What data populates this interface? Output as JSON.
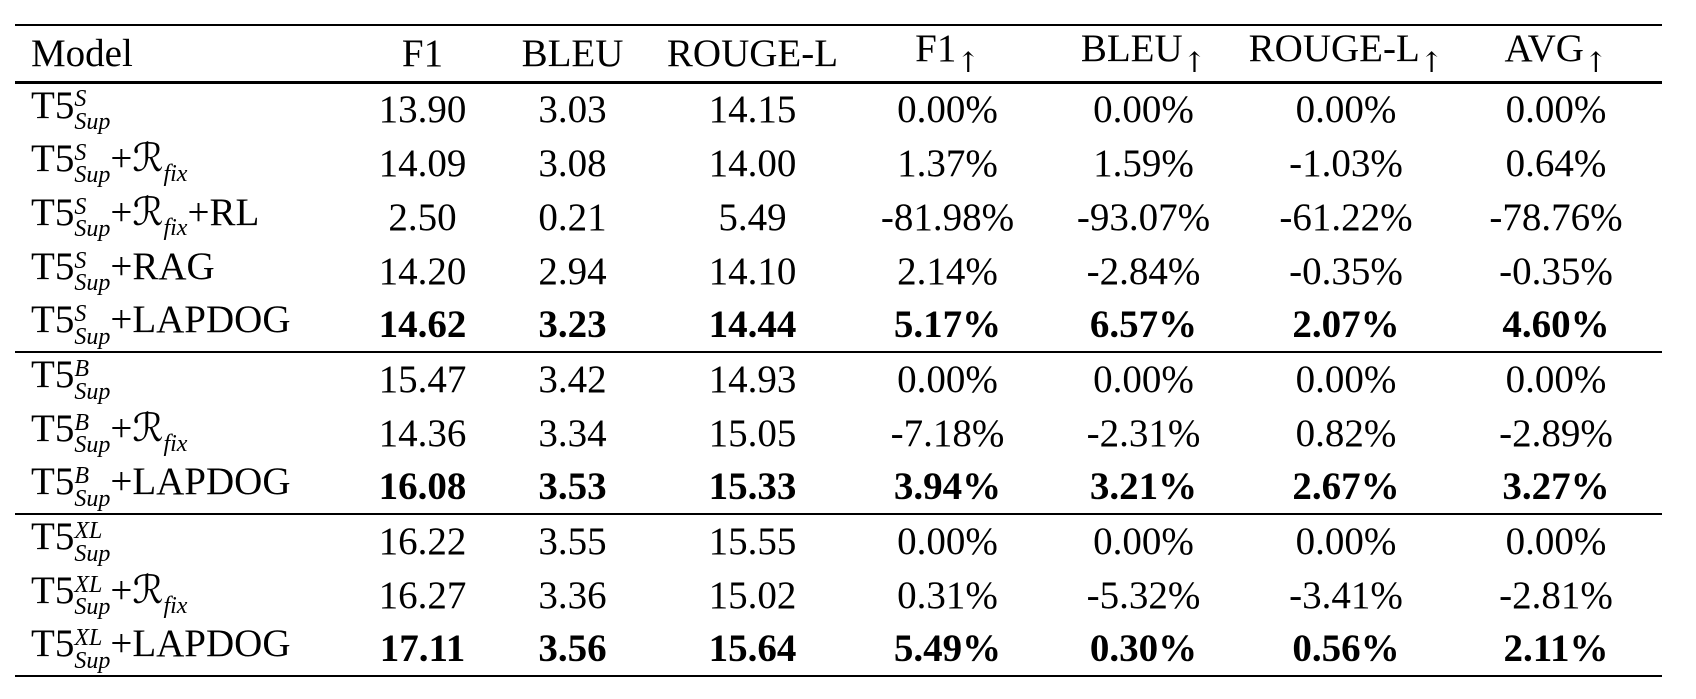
{
  "page": {
    "background": "#ffffff",
    "text_color": "#000000"
  },
  "table": {
    "arrow_char": "↑",
    "headers": [
      {
        "key": "model",
        "label": "Model",
        "arrow": false
      },
      {
        "key": "f1",
        "label": "F1",
        "arrow": false
      },
      {
        "key": "bleu",
        "label": "BLEU",
        "arrow": false
      },
      {
        "key": "rouge-l",
        "label": "ROUGE-L",
        "arrow": false
      },
      {
        "key": "f1-gain",
        "label": "F1",
        "arrow": true
      },
      {
        "key": "bleu-gain",
        "label": "BLEU",
        "arrow": true
      },
      {
        "key": "rouge-l-gain",
        "label": "ROUGE-L",
        "arrow": true
      },
      {
        "key": "avg-gain",
        "label": "AVG",
        "arrow": true
      }
    ],
    "groups": [
      {
        "rows": [
          {
            "model": {
              "base": "T5",
              "sup": "S",
              "sub": "Sup",
              "suffix": []
            },
            "values": [
              "13.90",
              "3.03",
              "14.15",
              "0.00%",
              "0.00%",
              "0.00%",
              "0.00%"
            ],
            "bold": false
          },
          {
            "model": {
              "base": "T5",
              "sup": "S",
              "sub": "Sup",
              "suffix": [
                {
                  "text": "+",
                  "style": "roman"
                },
                {
                  "text": "ℛ",
                  "style": "cal"
                },
                {
                  "text": "fix",
                  "style": "isub"
                }
              ]
            },
            "values": [
              "14.09",
              "3.08",
              "14.00",
              "1.37%",
              "1.59%",
              "-1.03%",
              "0.64%"
            ],
            "bold": false
          },
          {
            "model": {
              "base": "T5",
              "sup": "S",
              "sub": "Sup",
              "suffix": [
                {
                  "text": "+",
                  "style": "roman"
                },
                {
                  "text": "ℛ",
                  "style": "cal"
                },
                {
                  "text": "fix",
                  "style": "isub"
                },
                {
                  "text": "+RL",
                  "style": "roman"
                }
              ]
            },
            "values": [
              "2.50",
              "0.21",
              "5.49",
              "-81.98%",
              "-93.07%",
              "-61.22%",
              "-78.76%"
            ],
            "bold": false
          },
          {
            "model": {
              "base": "T5",
              "sup": "S",
              "sub": "Sup",
              "suffix": [
                {
                  "text": "+RAG",
                  "style": "roman"
                }
              ]
            },
            "values": [
              "14.20",
              "2.94",
              "14.10",
              "2.14%",
              "-2.84%",
              "-0.35%",
              "-0.35%"
            ],
            "bold": false
          },
          {
            "model": {
              "base": "T5",
              "sup": "S",
              "sub": "Sup",
              "suffix": [
                {
                  "text": "+LAPDOG",
                  "style": "roman"
                }
              ]
            },
            "values": [
              "14.62",
              "3.23",
              "14.44",
              "5.17%",
              "6.57%",
              "2.07%",
              "4.60%"
            ],
            "bold": true
          }
        ]
      },
      {
        "rows": [
          {
            "model": {
              "base": "T5",
              "sup": "B",
              "sub": "Sup",
              "suffix": []
            },
            "values": [
              "15.47",
              "3.42",
              "14.93",
              "0.00%",
              "0.00%",
              "0.00%",
              "0.00%"
            ],
            "bold": false
          },
          {
            "model": {
              "base": "T5",
              "sup": "B",
              "sub": "Sup",
              "suffix": [
                {
                  "text": "+",
                  "style": "roman"
                },
                {
                  "text": "ℛ",
                  "style": "cal"
                },
                {
                  "text": "fix",
                  "style": "isub"
                }
              ]
            },
            "values": [
              "14.36",
              "3.34",
              "15.05",
              "-7.18%",
              "-2.31%",
              "0.82%",
              "-2.89%"
            ],
            "bold": false
          },
          {
            "model": {
              "base": "T5",
              "sup": "B",
              "sub": "Sup",
              "suffix": [
                {
                  "text": "+LAPDOG",
                  "style": "roman"
                }
              ]
            },
            "values": [
              "16.08",
              "3.53",
              "15.33",
              "3.94%",
              "3.21%",
              "2.67%",
              "3.27%"
            ],
            "bold": true
          }
        ]
      },
      {
        "rows": [
          {
            "model": {
              "base": "T5",
              "sup": "XL",
              "sub": "Sup",
              "suffix": []
            },
            "values": [
              "16.22",
              "3.55",
              "15.55",
              "0.00%",
              "0.00%",
              "0.00%",
              "0.00%"
            ],
            "bold": false
          },
          {
            "model": {
              "base": "T5",
              "sup": "XL",
              "sub": "Sup",
              "suffix": [
                {
                  "text": "+",
                  "style": "roman"
                },
                {
                  "text": "ℛ",
                  "style": "cal"
                },
                {
                  "text": "fix",
                  "style": "isub"
                }
              ]
            },
            "values": [
              "16.27",
              "3.36",
              "15.02",
              "0.31%",
              "-5.32%",
              "-3.41%",
              "-2.81%"
            ],
            "bold": false
          },
          {
            "model": {
              "base": "T5",
              "sup": "XL",
              "sub": "Sup",
              "suffix": [
                {
                  "text": "+LAPDOG",
                  "style": "roman"
                }
              ]
            },
            "values": [
              "17.11",
              "3.56",
              "15.64",
              "5.49%",
              "0.30%",
              "0.56%",
              "2.11%"
            ],
            "bold": true
          }
        ]
      }
    ]
  }
}
